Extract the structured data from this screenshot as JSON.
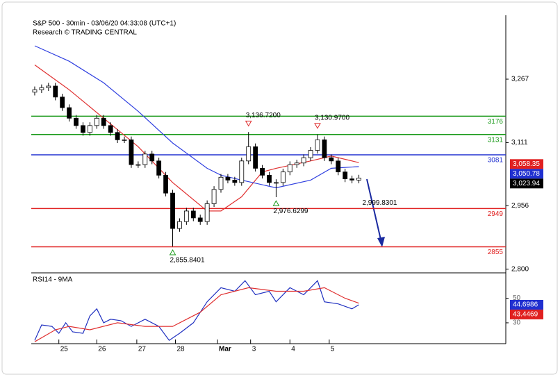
{
  "chart_data": [
    {
      "type": "candlestick",
      "title": "S&P 500 - 30min - 03/06/20 04:33:08 (UTC+1)",
      "subtitle": "Research © TRADING CENTRAL",
      "xlim": [
        -0.5,
        68.3
      ],
      "xticks": [
        {
          "value": 3.5,
          "label": "25"
        },
        {
          "value": 9,
          "label": "26"
        },
        {
          "value": 14.8,
          "label": "27"
        },
        {
          "value": 20.4,
          "label": "28"
        },
        {
          "value": 26.5,
          "label": "Mar"
        },
        {
          "value": 31.3,
          "label": "3"
        },
        {
          "value": 37,
          "label": "4"
        },
        {
          "value": 42.7,
          "label": "5"
        }
      ],
      "ylim": [
        2791,
        3424
      ],
      "yticks": [
        {
          "value": 3267,
          "label": "3,267"
        },
        {
          "value": 3111,
          "label": "3,111"
        },
        {
          "value": 2956,
          "label": "2,956"
        },
        {
          "value": 2800,
          "label": "2,800"
        }
      ],
      "up_color": "#ffffff",
      "down_color": "#000000",
      "open": [
        3235,
        3241,
        3246,
        3250,
        3223,
        3197,
        3171,
        3153,
        3136,
        3153,
        3171,
        3153,
        3136,
        3118,
        3118,
        3057,
        3057,
        3083,
        3066,
        3031,
        2987,
        2900,
        2917,
        2943,
        2926,
        2917,
        2961,
        2996,
        3026,
        3019,
        3013,
        3066,
        3101,
        3048,
        3031,
        3013,
        3013,
        3039,
        3057,
        3061,
        3074,
        3092,
        3118,
        3074,
        3066,
        3039,
        3022,
        3019
      ],
      "high": [
        3249,
        3254,
        3258,
        3258,
        3231,
        3205,
        3179,
        3161,
        3161,
        3179,
        3179,
        3161,
        3144,
        3126,
        3126,
        3065,
        3091,
        3091,
        3074,
        3039,
        2995,
        2925,
        2951,
        2951,
        2934,
        2969,
        3004,
        3034,
        3034,
        3027,
        3074,
        3137,
        3109,
        3056,
        3039,
        3021,
        3047,
        3065,
        3069,
        3082,
        3100,
        3131,
        3126,
        3082,
        3074,
        3047,
        3030,
        3032
      ],
      "low": [
        3227,
        3233,
        3238,
        3215,
        3189,
        3163,
        3145,
        3128,
        3128,
        3145,
        3145,
        3128,
        3110,
        3110,
        3049,
        3049,
        3049,
        3058,
        3023,
        2979,
        2856,
        2892,
        2909,
        2918,
        2909,
        2909,
        2953,
        2988,
        3011,
        3005,
        3005,
        3058,
        3040,
        3023,
        3005,
        2977,
        3005,
        3031,
        3049,
        3053,
        3066,
        3084,
        3066,
        3058,
        3031,
        3014,
        3011,
        3011
      ],
      "close": [
        3241,
        3246,
        3250,
        3223,
        3197,
        3171,
        3153,
        3136,
        3153,
        3171,
        3153,
        3136,
        3118,
        3118,
        3057,
        3057,
        3083,
        3066,
        3031,
        2987,
        2900,
        2917,
        2943,
        2926,
        2917,
        2961,
        2996,
        3026,
        3019,
        3013,
        3066,
        3101,
        3048,
        3031,
        3013,
        3013,
        3039,
        3057,
        3061,
        3074,
        3092,
        3118,
        3074,
        3066,
        3039,
        3022,
        3019,
        3024
      ],
      "lines": [
        {
          "color": "#e03030",
          "x": [
            0,
            5,
            10,
            15,
            20,
            25,
            27,
            30,
            33,
            35,
            40,
            43,
            47
          ],
          "values": [
            3302,
            3241,
            3171,
            3101,
            3013,
            2943,
            2943,
            2978,
            3039,
            3048,
            3066,
            3078,
            3062
          ]
        },
        {
          "color": "#3040e0",
          "x": [
            0,
            5,
            10,
            15,
            20,
            25,
            27,
            30,
            35,
            40,
            43,
            47
          ],
          "values": [
            3349,
            3311,
            3258,
            3188,
            3110,
            3048,
            3031,
            3019,
            3000,
            3019,
            3048,
            3052
          ]
        }
      ],
      "levels": [
        {
          "value": 3176,
          "color": "#1a9a1a"
        },
        {
          "value": 3131,
          "color": "#1a9a1a"
        },
        {
          "value": 3081,
          "color": "#2030d0"
        },
        {
          "value": 2949,
          "color": "#e02020"
        },
        {
          "value": 2855,
          "color": "#e02020"
        }
      ],
      "annotations": [
        {
          "x": 31,
          "value": 3136.72,
          "label": "3,136.7200",
          "marker": "down",
          "color": "#e03030"
        },
        {
          "x": 41,
          "value": 3130.97,
          "label": "3,130.9700",
          "marker": "down",
          "color": "#e03030"
        },
        {
          "x": 35,
          "value": 2976.6299,
          "label": "2,976.6299",
          "marker": "up",
          "color": "#1a9a1a"
        },
        {
          "x": 20,
          "value": 2855.8401,
          "label": "2,855.8401",
          "marker": "up",
          "color": "#1a9a1a"
        },
        {
          "x": 48.5,
          "value": 2999.8301,
          "label": "2,999.8301",
          "marker": "none",
          "color": "#000000"
        }
      ],
      "price_tags": [
        {
          "value": 3058.35,
          "label": "3,058.35",
          "color": "#e02020"
        },
        {
          "value": 3050.78,
          "label": "3,050.78",
          "color": "#2030d0"
        },
        {
          "value": 3023.94,
          "label": "3,023.94",
          "color": "#000000"
        }
      ]
    },
    {
      "type": "rsi",
      "title": "RSI14 - 9MA",
      "ylim": [
        13,
        69
      ],
      "yticks": [
        30,
        50
      ],
      "lines": [
        {
          "color": "#2030c0",
          "x": [
            0,
            1,
            2.5,
            3.5,
            4.5,
            5.5,
            7,
            8,
            9,
            10,
            11,
            12.5,
            14,
            16,
            18,
            19.5,
            21,
            23,
            25,
            27,
            29,
            30.5,
            32,
            34,
            35,
            37,
            39,
            41,
            42,
            44,
            46,
            47
          ],
          "values": [
            15.7,
            28.3,
            27.1,
            21.4,
            30,
            22.6,
            21.4,
            35.7,
            41.4,
            30,
            32.9,
            31.7,
            27.1,
            32.9,
            27.1,
            15.7,
            21.4,
            30,
            47.1,
            58.6,
            55.7,
            64.3,
            52.9,
            55.7,
            47.1,
            58.6,
            52.9,
            64.3,
            47.1,
            45.4,
            41.4,
            44.7
          ]
        },
        {
          "color": "#e03030",
          "x": [
            0,
            3,
            5,
            8,
            12,
            16,
            20,
            24,
            27,
            31,
            35,
            39,
            42,
            45,
            47
          ],
          "values": [
            14.6,
            24.3,
            27.1,
            24.3,
            30,
            27.1,
            27.1,
            38.6,
            52.9,
            58.6,
            55.7,
            55.7,
            58.6,
            50,
            46
          ]
        }
      ],
      "price_tags": [
        {
          "value": 44.6986,
          "label": "44.6986",
          "color": "#2030d0"
        },
        {
          "value": 43.4469,
          "label": "43.4469",
          "color": "#e02020"
        }
      ]
    }
  ]
}
